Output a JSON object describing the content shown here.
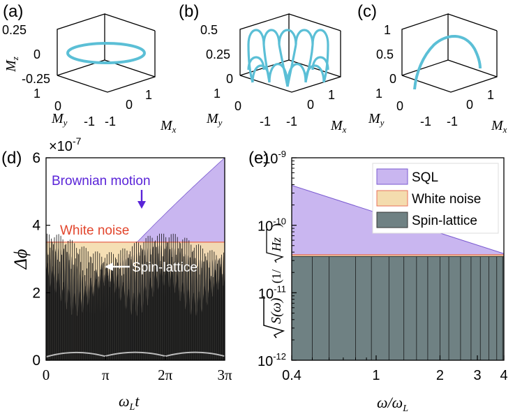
{
  "panel_labels": {
    "a": "(a)",
    "b": "(b)",
    "c": "(c)",
    "d": "(d)",
    "e": "(e)"
  },
  "axis_symbols": {
    "mx": "M",
    "my": "M",
    "mz": "M",
    "sub_x": "x",
    "sub_y": "y",
    "sub_z": "z"
  },
  "colors": {
    "trajectory": "#5bbfd6",
    "sql": "#c9b6f0",
    "white_noise": "#f4dcae",
    "spin_lattice": "#6f8183",
    "brownian_label": "#5a24d8",
    "white_noise_label": "#e2462d",
    "white_noise_line": "#e8705a"
  },
  "chart_data": [
    {
      "panel": "(a)",
      "type": "line3d",
      "zticks": [
        "0.25",
        "0",
        "-0.25"
      ],
      "yticks": [
        "1",
        "0",
        "-1"
      ],
      "xticks": [
        "-1",
        "0",
        "1"
      ],
      "trajectory": "horizontal circle of radius 1 in the Mx–My plane at Mz = 0"
    },
    {
      "panel": "(b)",
      "type": "line3d",
      "zticks": [
        "0.5",
        "0.25",
        "0"
      ],
      "yticks": [
        "1",
        "0",
        "-1"
      ],
      "xticks": [
        "-1",
        "0",
        "1"
      ],
      "trajectory": "precession with nutation: arches of height 0.5 along a unit circle"
    },
    {
      "panel": "(c)",
      "type": "line3d",
      "zticks": [
        "1",
        "0.5",
        "0"
      ],
      "yticks": [
        "1",
        "0",
        "-1"
      ],
      "xticks": [
        "-1",
        "0",
        "1"
      ],
      "trajectory": "single arc from (-1, 0, 0) up to Mz = 1 and back down"
    },
    {
      "panel": "(d)",
      "type": "area",
      "exponent_label": "×10",
      "exponent_power": "-7",
      "xlabel_main": "ω",
      "xlabel_sub": "L",
      "xlabel_tail": "t",
      "ylabel": "Δϕ",
      "xlim": [
        0,
        9.42478
      ],
      "ylim": [
        0,
        6
      ],
      "xticks": [
        {
          "value": 0,
          "label": "0"
        },
        {
          "value": 3.14159,
          "label": "π"
        },
        {
          "value": 6.28319,
          "label": "2π"
        },
        {
          "value": 9.42478,
          "label": "3π"
        }
      ],
      "yticks": [
        0,
        2,
        4,
        6
      ],
      "series": [
        {
          "name": "Brownian motion",
          "kind": "curve",
          "formula": "y = 6*(t/3π)^0.8 for t ≥ 2.05",
          "min_y": 2.5
        },
        {
          "name": "White noise",
          "kind": "constant",
          "value": 3.5
        },
        {
          "name": "Spin-lattice",
          "kind": "oscillating",
          "envelope_max": 3.7
        }
      ],
      "annotations": [
        {
          "text": "Brownian motion",
          "arrow_to": [
            5.15,
            4.45
          ]
        },
        {
          "text": "White noise"
        },
        {
          "text": "Spin-lattice",
          "arrow_to": [
            2.6,
            2.7
          ]
        }
      ]
    },
    {
      "panel": "(e)",
      "type": "area",
      "scale": "log-log",
      "xlabel_main": "ω/ω",
      "xlabel_sub": "L",
      "ylabel_sqrt": "S(ω)",
      "ylabel_unit_pre": "(1/",
      "ylabel_unit_sqrt": "Hz",
      "ylabel_unit_post": ")",
      "xlim": [
        0.4,
        4
      ],
      "ylim": [
        1e-12,
        1e-09
      ],
      "xticks": [
        {
          "value": 0.4,
          "label": "0.4"
        },
        {
          "value": 1,
          "label": "1"
        },
        {
          "value": 2,
          "label": "2"
        },
        {
          "value": 3,
          "label": "3"
        },
        {
          "value": 4,
          "label": "4"
        }
      ],
      "yticks": [
        {
          "value": 1e-12,
          "base": "10",
          "power": "-12"
        },
        {
          "value": 1e-11,
          "base": "10",
          "power": "-11"
        },
        {
          "value": 1e-10,
          "base": "10",
          "power": "-10"
        },
        {
          "value": 1e-09,
          "base": "10",
          "power": "-9"
        }
      ],
      "series": [
        {
          "name": "SQL",
          "x": [
            0.4,
            4
          ],
          "y": [
            3.9e-10,
            3.8e-11
          ]
        },
        {
          "name": "White noise",
          "x": [
            0.4,
            4
          ],
          "y": [
            3.65e-11,
            3.65e-11
          ]
        },
        {
          "name": "Spin-lattice",
          "x": [
            0.4,
            4
          ],
          "y": [
            3.45e-11,
            3.45e-11
          ]
        }
      ],
      "legend": [
        "SQL",
        "White noise",
        "Spin-lattice"
      ],
      "legend_position": "top-right"
    }
  ]
}
